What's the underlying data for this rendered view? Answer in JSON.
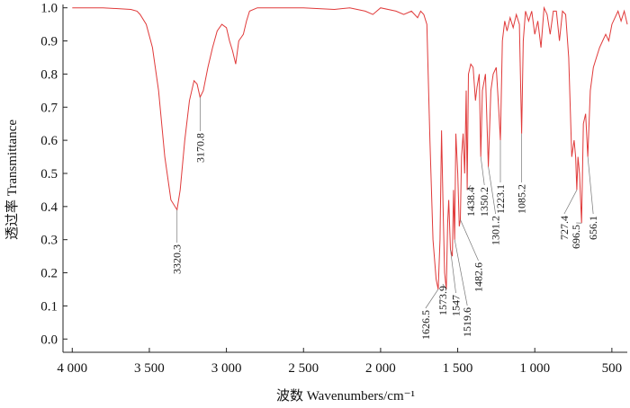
{
  "chart_data": {
    "type": "line",
    "color": "#e03a3a",
    "x_label": "波数 Wavenumbers/cm⁻¹",
    "y_label": "透过率 Transmittance",
    "xlim": [
      4060,
      400
    ],
    "ylim": [
      -0.04,
      1.01
    ],
    "xticks": [
      {
        "value": 4000,
        "label": "4 000"
      },
      {
        "value": 3500,
        "label": "3 500"
      },
      {
        "value": 3000,
        "label": "3 000"
      },
      {
        "value": 2500,
        "label": "2 500"
      },
      {
        "value": 2000,
        "label": "2 000"
      },
      {
        "value": 1500,
        "label": "1 500"
      },
      {
        "value": 1000,
        "label": "1 000"
      },
      500
    ],
    "yticks": [
      {
        "value": 0,
        "label": "0.0"
      },
      0.1,
      0.2,
      0.3,
      0.4,
      0.5,
      0.6,
      0.7,
      0.8,
      0.9,
      {
        "value": 1,
        "label": "1.0"
      }
    ],
    "x": [
      4000,
      3800,
      3620,
      3580,
      3560,
      3520,
      3480,
      3440,
      3400,
      3360,
      3320.3,
      3300,
      3270,
      3240,
      3210,
      3190,
      3170.8,
      3150,
      3120,
      3090,
      3060,
      3030,
      3000,
      2980,
      2960,
      2940,
      2920,
      2890,
      2870,
      2850,
      2800,
      2500,
      2300,
      2200,
      2100,
      2050,
      2000,
      1900,
      1850,
      1800,
      1760,
      1740,
      1720,
      1700,
      1680,
      1660,
      1640,
      1626.5,
      1615,
      1605,
      1595,
      1585,
      1573.9,
      1565,
      1558,
      1547.0,
      1535,
      1527,
      1519.6,
      1512,
      1500,
      1490,
      1482.6,
      1475,
      1465,
      1455,
      1445,
      1438.4,
      1430,
      1415,
      1400,
      1385,
      1375,
      1360,
      1350.2,
      1340,
      1320,
      1301.2,
      1285,
      1270,
      1250,
      1235,
      1223.1,
      1210,
      1195,
      1180,
      1160,
      1140,
      1120,
      1100,
      1085.2,
      1075,
      1060,
      1040,
      1020,
      1000,
      980,
      960,
      940,
      920,
      900,
      880,
      860,
      840,
      820,
      800,
      780,
      760,
      745,
      735,
      727.4,
      720,
      710,
      696.5,
      685,
      670,
      656.1,
      640,
      620,
      600,
      580,
      560,
      540,
      520,
      500,
      480,
      460,
      440,
      420,
      400
    ],
    "values": [
      1.0,
      1.0,
      0.995,
      0.99,
      0.98,
      0.95,
      0.88,
      0.75,
      0.55,
      0.42,
      0.39,
      0.45,
      0.6,
      0.72,
      0.78,
      0.77,
      0.73,
      0.75,
      0.82,
      0.88,
      0.93,
      0.95,
      0.94,
      0.9,
      0.87,
      0.83,
      0.9,
      0.92,
      0.96,
      0.99,
      1.0,
      1.0,
      0.995,
      1.0,
      0.99,
      0.98,
      1.0,
      0.99,
      0.98,
      0.99,
      0.97,
      0.99,
      0.98,
      0.95,
      0.6,
      0.3,
      0.18,
      0.15,
      0.3,
      0.63,
      0.4,
      0.2,
      0.15,
      0.35,
      0.42,
      0.27,
      0.25,
      0.45,
      0.3,
      0.62,
      0.5,
      0.34,
      0.36,
      0.55,
      0.62,
      0.5,
      0.75,
      0.45,
      0.8,
      0.83,
      0.82,
      0.72,
      0.76,
      0.8,
      0.55,
      0.75,
      0.8,
      0.52,
      0.75,
      0.8,
      0.82,
      0.7,
      0.6,
      0.9,
      0.96,
      0.93,
      0.97,
      0.94,
      0.98,
      0.95,
      0.62,
      0.9,
      0.99,
      0.96,
      0.99,
      0.92,
      0.96,
      0.88,
      1.0,
      0.98,
      0.92,
      0.99,
      0.99,
      0.9,
      0.99,
      0.98,
      0.85,
      0.55,
      0.6,
      0.55,
      0.45,
      0.55,
      0.5,
      0.35,
      0.65,
      0.68,
      0.55,
      0.75,
      0.82,
      0.85,
      0.88,
      0.9,
      0.92,
      0.9,
      0.95,
      0.97,
      0.99,
      0.96,
      0.99,
      0.95
    ],
    "peaks": {
      "x": [
        3320.3,
        3170.8,
        1626.5,
        1573.9,
        1547.0,
        1519.6,
        1482.6,
        1438.4,
        1350.2,
        1301.2,
        1223.1,
        1085.2,
        727.4,
        696.5,
        656.1
      ],
      "values": [
        0.39,
        0.73,
        0.15,
        0.15,
        0.27,
        0.3,
        0.36,
        0.45,
        0.55,
        0.52,
        0.6,
        0.62,
        0.45,
        0.35,
        0.55
      ]
    }
  }
}
